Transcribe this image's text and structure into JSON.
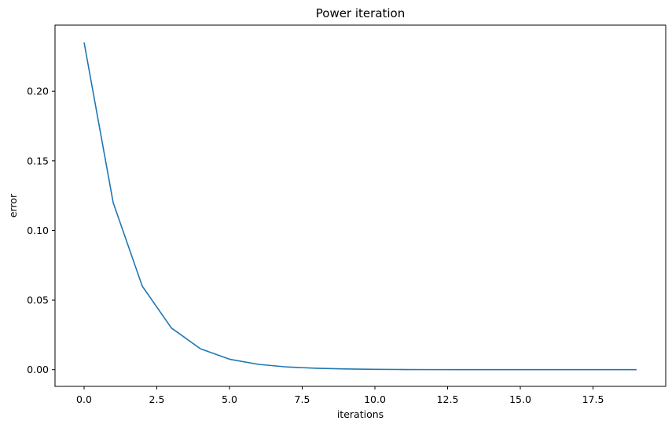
{
  "chart_data": {
    "type": "line",
    "title": "Power iteration",
    "xlabel": "iterations",
    "ylabel": "error",
    "xlim": [
      -1.0,
      20.0
    ],
    "ylim": [
      -0.012,
      0.2475
    ],
    "xticks": [
      0.0,
      2.5,
      5.0,
      7.5,
      10.0,
      12.5,
      15.0,
      17.5
    ],
    "xtick_labels": [
      "0.0",
      "2.5",
      "5.0",
      "7.5",
      "10.0",
      "12.5",
      "15.0",
      "17.5"
    ],
    "yticks": [
      0.0,
      0.05,
      0.1,
      0.15,
      0.2
    ],
    "ytick_labels": [
      "0.00",
      "0.05",
      "0.10",
      "0.15",
      "0.20"
    ],
    "grid": false,
    "series": [
      {
        "color": "#1f77b4",
        "x": [
          0,
          1,
          2,
          3,
          4,
          5,
          6,
          7,
          8,
          9,
          10,
          11,
          12,
          13,
          14,
          15,
          16,
          17,
          18,
          19
        ],
        "y": [
          0.235,
          0.12,
          0.06,
          0.03,
          0.015,
          0.0075,
          0.0038,
          0.0019,
          0.001,
          0.0005,
          0.00025,
          0.00012,
          6e-05,
          3e-05,
          1.5e-05,
          7.5e-06,
          4e-06,
          2e-06,
          1e-06,
          5e-07
        ]
      }
    ]
  }
}
